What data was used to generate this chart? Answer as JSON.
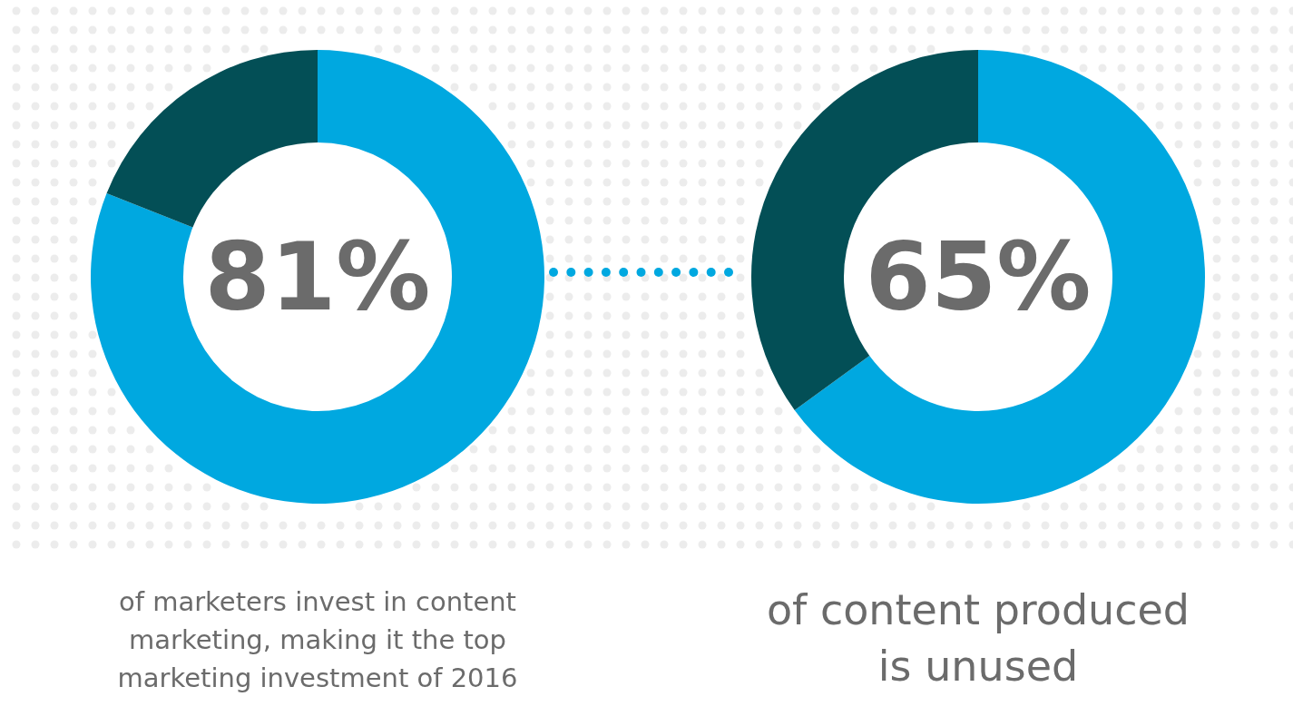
{
  "chart_data": [
    {
      "type": "donut",
      "categories": [
        null,
        null
      ],
      "values": [
        81,
        19
      ],
      "colors": [
        "#00a8e0",
        "#034f56"
      ],
      "title": "81%",
      "annotations": [
        "of marketers invest in content marketing, making it the top marketing investment of 2016"
      ]
    },
    {
      "type": "donut",
      "categories": [
        null,
        null
      ],
      "values": [
        65,
        35
      ],
      "colors": [
        "#00a8e0",
        "#034f56"
      ],
      "title": "65%",
      "annotations": [
        "of content produced is unused"
      ]
    }
  ]
}
